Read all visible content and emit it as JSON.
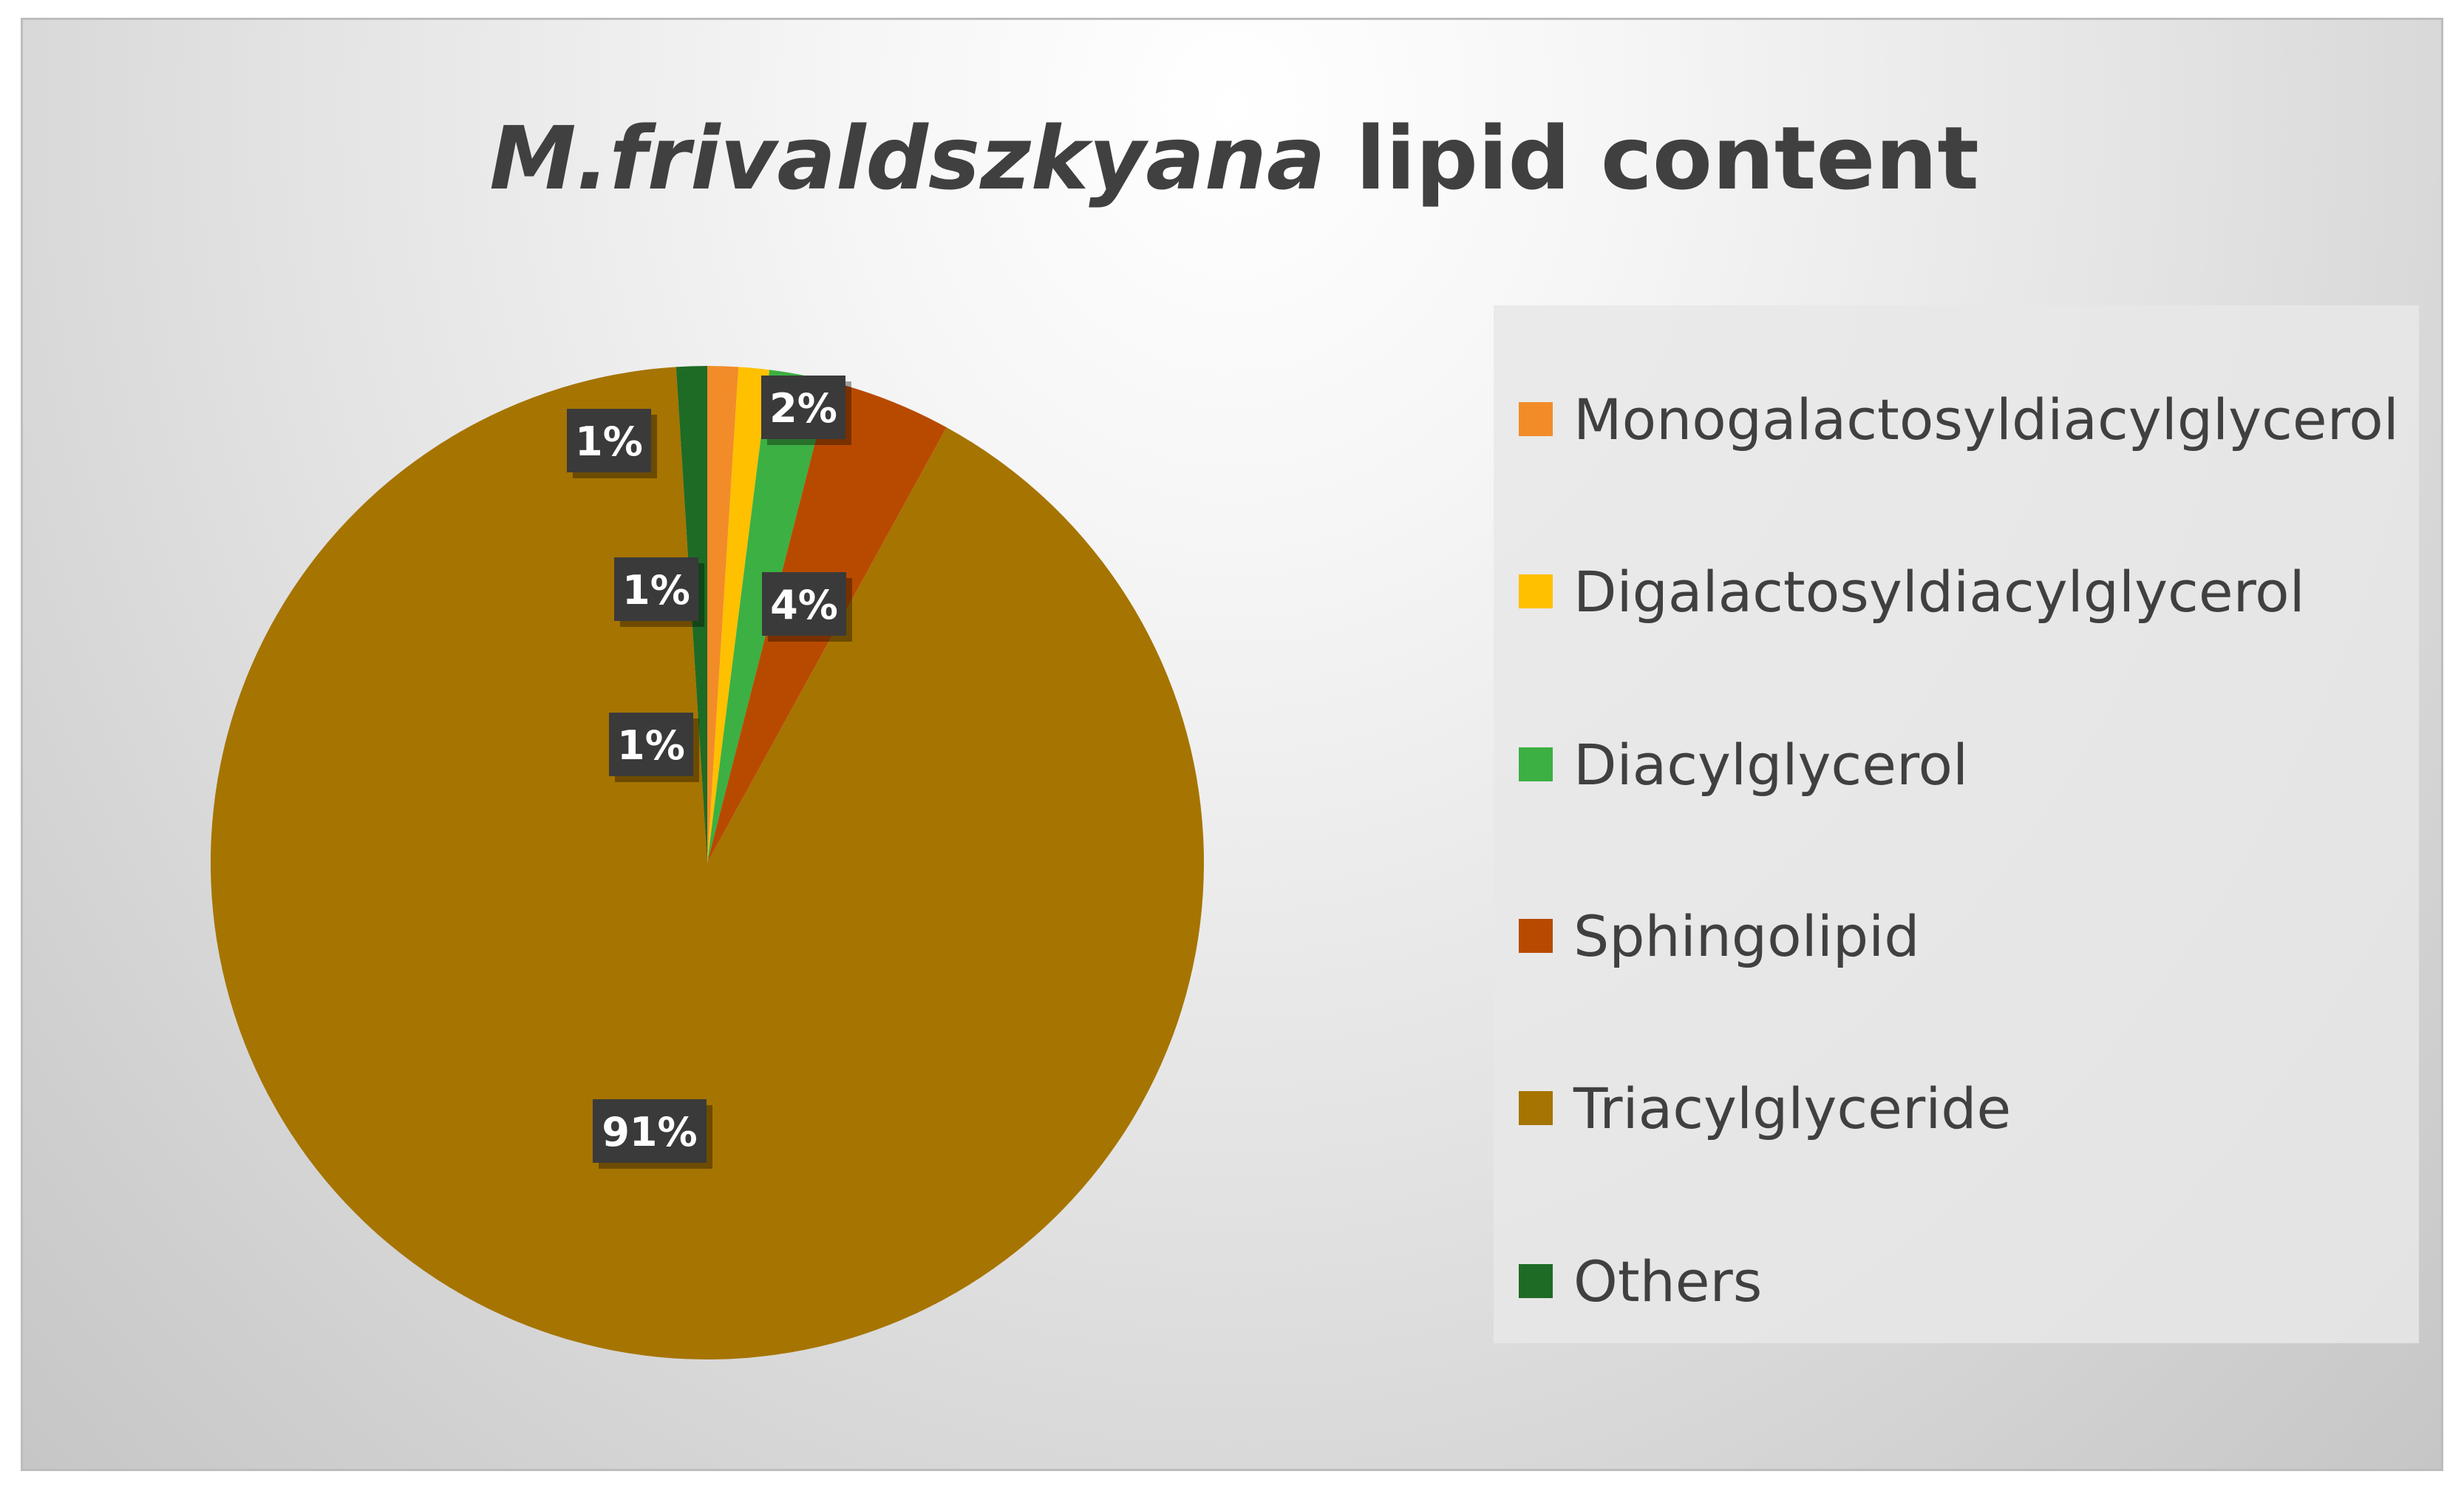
{
  "chart_data": {
    "type": "pie",
    "title_italic": "M.frivaldszkyana",
    "title_rest": " lipid content",
    "slices": [
      {
        "name": "Monogalactosyldiacylglycerol",
        "value": 1,
        "label": "1%",
        "color": "#f28c28"
      },
      {
        "name": "Digalactosyldiacylglycerol",
        "value": 1,
        "label": "1%",
        "color": "#ffc000"
      },
      {
        "name": "Diacylglycerol",
        "value": 2,
        "label": "2%",
        "color": "#3cb043"
      },
      {
        "name": "Sphingolipid",
        "value": 4,
        "label": "4%",
        "color": "#b84a00"
      },
      {
        "name": "Triacylglyceride",
        "value": 91,
        "label": "91%",
        "color": "#a67400"
      },
      {
        "name": "Others",
        "value": 1,
        "label": "1%",
        "color": "#1e6b25"
      }
    ],
    "legend_position": "right"
  }
}
